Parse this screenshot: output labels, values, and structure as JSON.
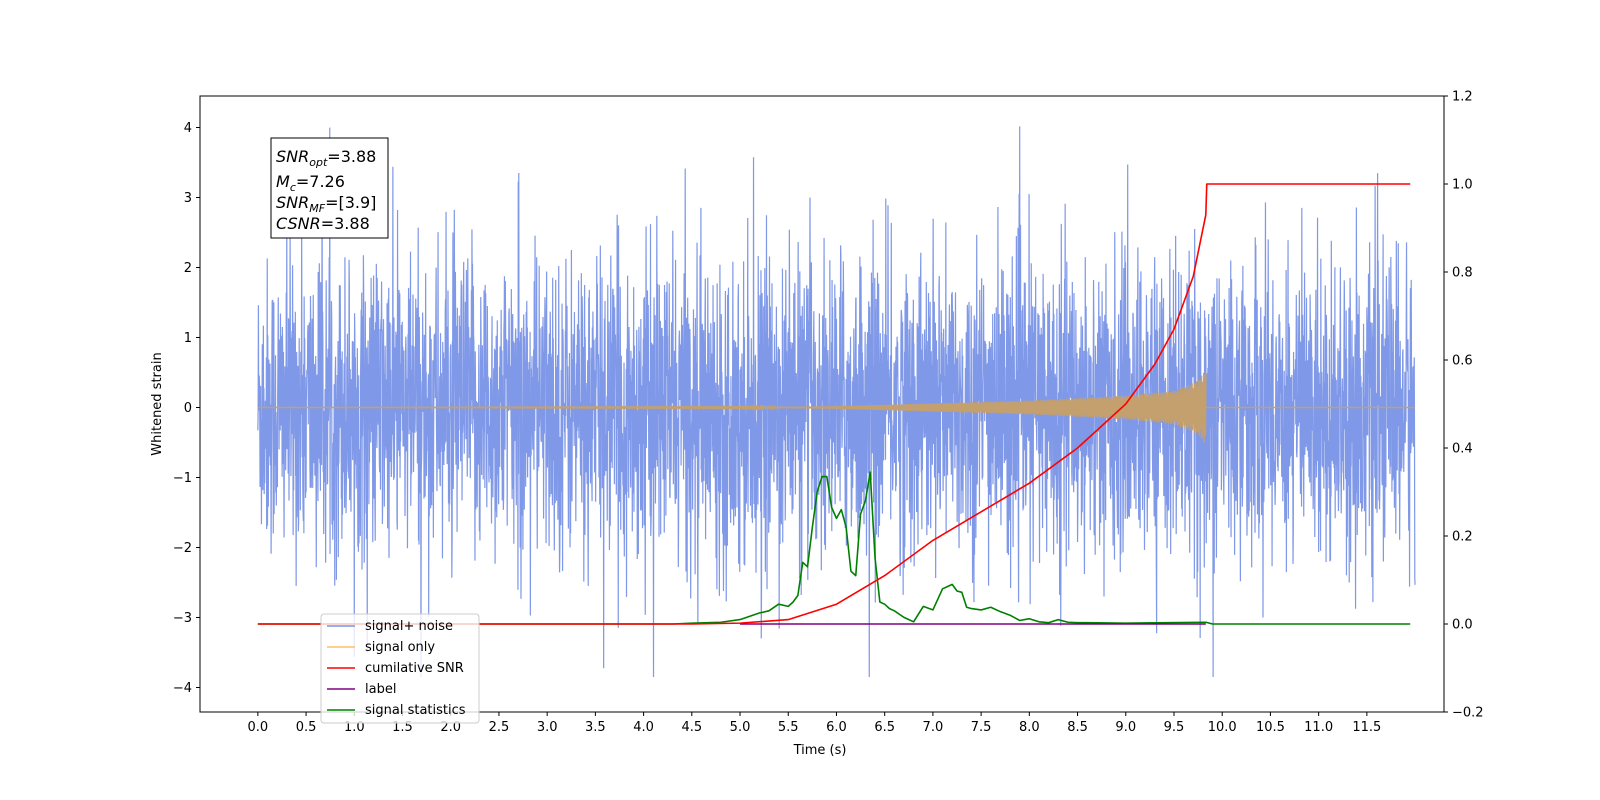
{
  "chart_data": {
    "type": "line",
    "xlabel": "Time (s)",
    "ylabel": "Whitened strain",
    "xlim": [
      -0.6,
      12.3
    ],
    "ylim": [
      -4.35,
      4.45
    ],
    "y2lim": [
      -0.2,
      1.2
    ],
    "xticks": [
      "0.0",
      "0.5",
      "1.0",
      "1.5",
      "2.0",
      "2.5",
      "3.0",
      "3.5",
      "4.0",
      "4.5",
      "5.0",
      "5.5",
      "6.0",
      "6.5",
      "7.0",
      "7.5",
      "8.0",
      "8.5",
      "9.0",
      "9.5",
      "10.0",
      "10.5",
      "11.0",
      "11.5"
    ],
    "yticks": [
      "4",
      "3",
      "2",
      "1",
      "0",
      "−1",
      "−2",
      "−3",
      "−4"
    ],
    "y2ticks": [
      "1.2",
      "1.0",
      "0.8",
      "0.6",
      "0.4",
      "0.2",
      "0.0",
      "−0.2"
    ],
    "colors": {
      "noise": "#7892e6",
      "signal": "#c4a06e",
      "csnr": "#ff0000",
      "label": "#800080",
      "stats": "#008000"
    },
    "stats_box": {
      "snr_opt": "=3.88",
      "mc": "=7.26",
      "snr_mf": "=[3.9]",
      "csnr": "=3.88"
    },
    "legend": [
      {
        "name": "signal+ noise",
        "color": "#7892e6"
      },
      {
        "name": "signal only",
        "color": "#ffbf66"
      },
      {
        "name": "cumilative SNR",
        "color": "#ff0000"
      },
      {
        "name": "label",
        "color": "#800080"
      },
      {
        "name": "signal statistics",
        "color": "#008000"
      }
    ],
    "series": [
      {
        "name": "signal+ noise",
        "axis": "left",
        "t_range": [
          0.0,
          12.0
        ],
        "amplitude_typical": 2.5,
        "peak_max": 4.1,
        "peak_min": -3.85
      },
      {
        "name": "signal only",
        "axis": "left",
        "t_range": [
          0.0,
          9.83
        ],
        "envelope": {
          "t": [
            0,
            5.0,
            6.0,
            7.0,
            8.0,
            9.0,
            9.5,
            9.75,
            9.83
          ],
          "a": [
            0,
            0.005,
            0.02,
            0.06,
            0.1,
            0.17,
            0.24,
            0.38,
            0.55
          ]
        }
      },
      {
        "name": "cumilative SNR",
        "axis": "right",
        "x": [
          0.0,
          4.5,
          5.0,
          5.5,
          6.0,
          6.5,
          7.0,
          7.5,
          8.0,
          8.5,
          9.0,
          9.3,
          9.5,
          9.7,
          9.83,
          9.84,
          11.95
        ],
        "y": [
          0.0,
          0.0,
          0.002,
          0.01,
          0.045,
          0.11,
          0.19,
          0.255,
          0.32,
          0.4,
          0.5,
          0.59,
          0.67,
          0.79,
          0.93,
          1.0,
          1.0
        ]
      },
      {
        "name": "label",
        "axis": "right",
        "x": [
          5.0,
          9.83
        ],
        "y": [
          0.0,
          0.0
        ]
      },
      {
        "name": "signal statistics",
        "axis": "right",
        "x": [
          0.0,
          4.3,
          4.5,
          4.8,
          5.0,
          5.2,
          5.3,
          5.4,
          5.5,
          5.55,
          5.6,
          5.65,
          5.7,
          5.75,
          5.8,
          5.85,
          5.9,
          5.95,
          6.0,
          6.05,
          6.1,
          6.15,
          6.2,
          6.25,
          6.3,
          6.35,
          6.4,
          6.45,
          6.5,
          6.55,
          6.6,
          6.7,
          6.8,
          6.9,
          7.0,
          7.1,
          7.15,
          7.2,
          7.25,
          7.3,
          7.35,
          7.4,
          7.5,
          7.6,
          7.7,
          7.8,
          7.9,
          8.0,
          8.1,
          8.2,
          8.3,
          8.4,
          8.5,
          8.6,
          9.0,
          9.83,
          9.9,
          11.95
        ],
        "y": [
          0.0,
          0.0,
          0.002,
          0.004,
          0.01,
          0.025,
          0.03,
          0.045,
          0.04,
          0.05,
          0.065,
          0.14,
          0.13,
          0.22,
          0.3,
          0.335,
          0.335,
          0.265,
          0.24,
          0.26,
          0.22,
          0.12,
          0.11,
          0.25,
          0.28,
          0.345,
          0.15,
          0.05,
          0.045,
          0.035,
          0.03,
          0.015,
          0.005,
          0.04,
          0.032,
          0.08,
          0.085,
          0.09,
          0.075,
          0.072,
          0.038,
          0.035,
          0.032,
          0.038,
          0.028,
          0.02,
          0.008,
          0.012,
          0.005,
          0.003,
          0.01,
          0.004,
          0.003,
          0.003,
          0.002,
          0.004,
          0.0,
          0.0
        ]
      }
    ]
  }
}
